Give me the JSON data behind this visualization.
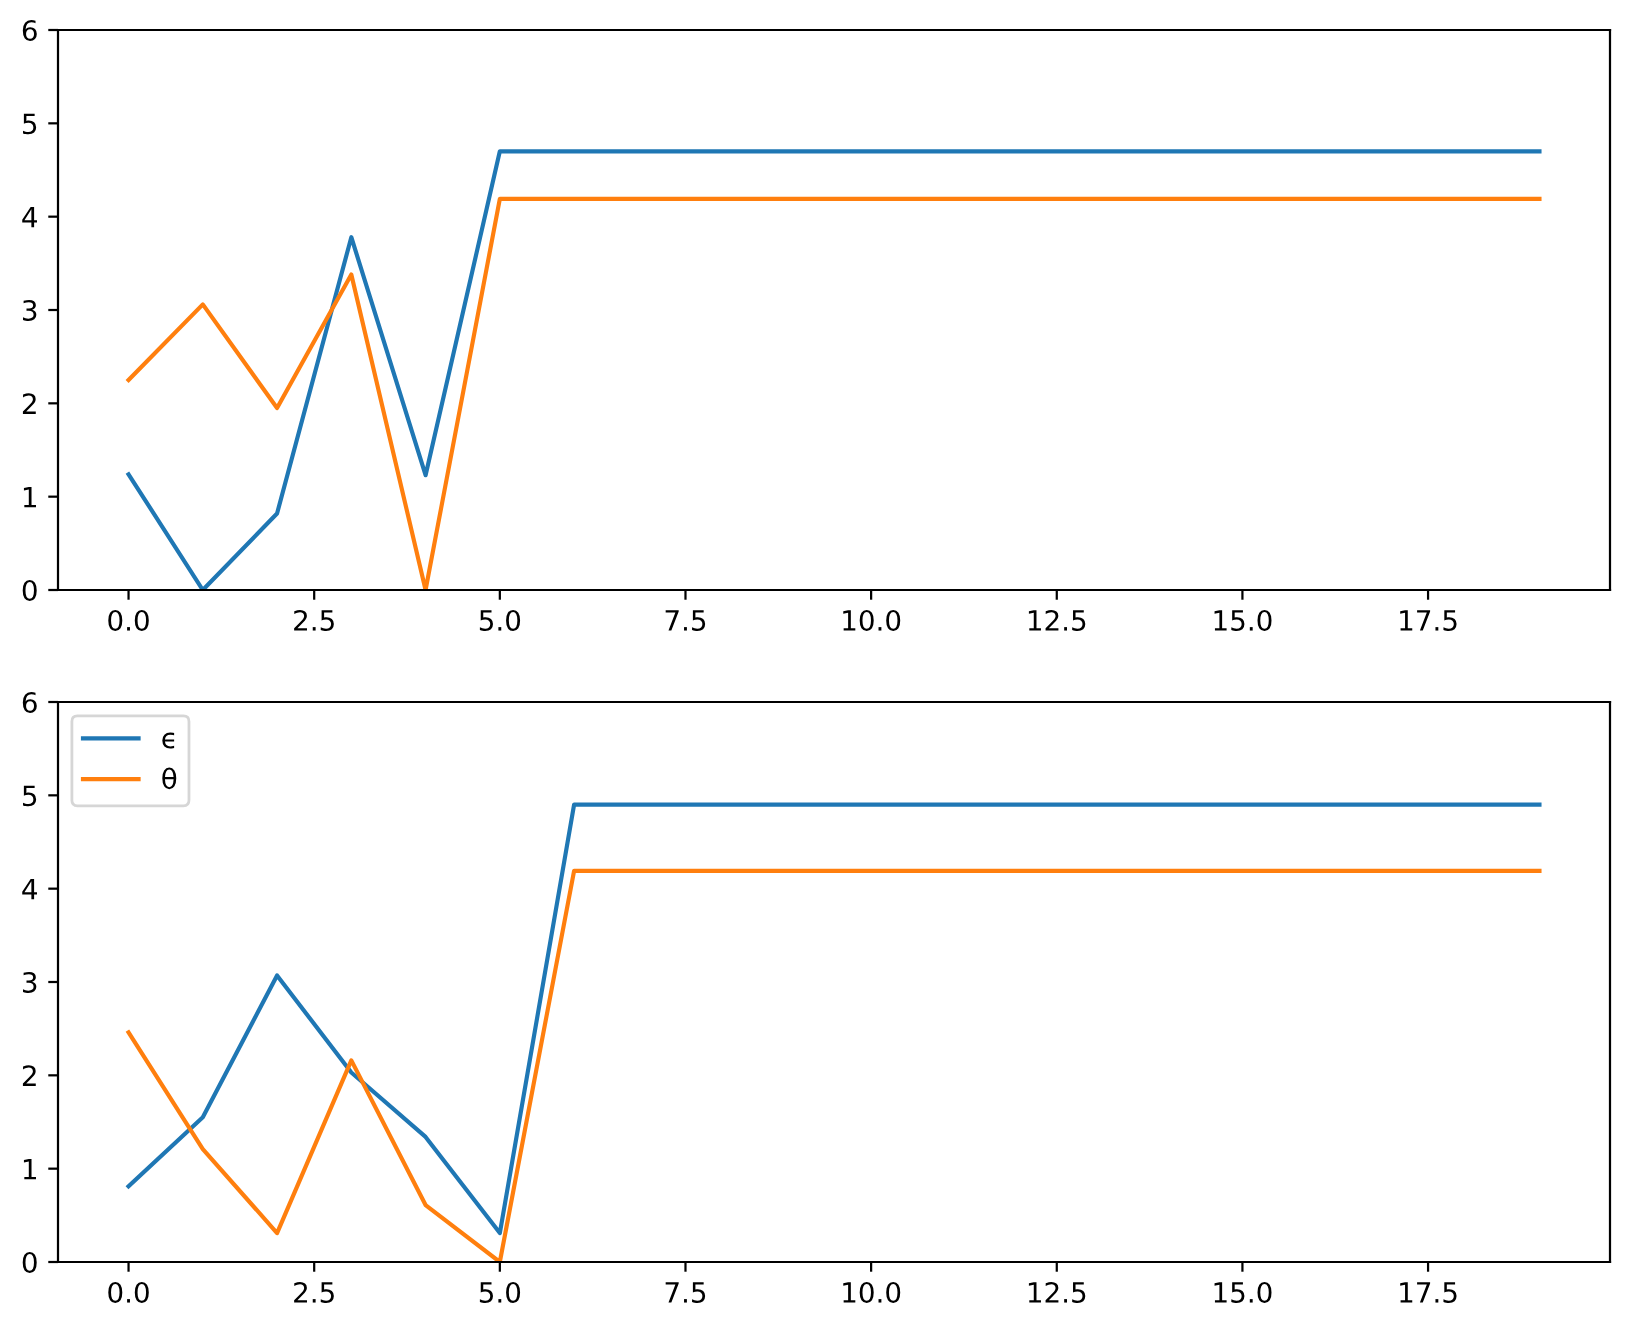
{
  "chart_data": [
    {
      "type": "line",
      "x": [
        0,
        1,
        2,
        3,
        4,
        5,
        6,
        7,
        8,
        9,
        10,
        11,
        12,
        13,
        14,
        15,
        16,
        17,
        18,
        19
      ],
      "series": [
        {
          "color": "#1f77b4",
          "values": [
            1.24,
            0,
            0.82,
            3.78,
            1.23,
            4.7,
            4.7,
            4.7,
            4.7,
            4.7,
            4.7,
            4.7,
            4.7,
            4.7,
            4.7,
            4.7,
            4.7,
            4.7,
            4.7,
            4.7
          ]
        },
        {
          "color": "#ff7f0e",
          "values": [
            2.25,
            3.06,
            1.95,
            3.38,
            0,
            4.19,
            4.19,
            4.19,
            4.19,
            4.19,
            4.19,
            4.19,
            4.19,
            4.19,
            4.19,
            4.19,
            4.19,
            4.19,
            4.19,
            4.19
          ]
        }
      ],
      "xlim": [
        -0.95,
        19.95
      ],
      "ylim": [
        0,
        6
      ],
      "xticks": [
        {
          "value": 0,
          "label": "0.0"
        },
        {
          "value": 2.5,
          "label": "2.5"
        },
        {
          "value": 5,
          "label": "5.0"
        },
        {
          "value": 7.5,
          "label": "7.5"
        },
        {
          "value": 10,
          "label": "10.0"
        },
        {
          "value": 12.5,
          "label": "12.5"
        },
        {
          "value": 15,
          "label": "15.0"
        },
        {
          "value": 17.5,
          "label": "17.5"
        }
      ],
      "yticks": [
        0,
        1,
        2,
        3,
        4,
        5,
        6
      ]
    },
    {
      "type": "line",
      "x": [
        0,
        1,
        2,
        3,
        4,
        5,
        6,
        7,
        8,
        9,
        10,
        11,
        12,
        13,
        14,
        15,
        16,
        17,
        18,
        19
      ],
      "series": [
        {
          "name": "ϵ",
          "color": "#1f77b4",
          "values": [
            0.81,
            1.55,
            3.07,
            2.03,
            1.34,
            0.31,
            4.9,
            4.9,
            4.9,
            4.9,
            4.9,
            4.9,
            4.9,
            4.9,
            4.9,
            4.9,
            4.9,
            4.9,
            4.9,
            4.9
          ]
        },
        {
          "name": "θ",
          "color": "#ff7f0e",
          "values": [
            2.46,
            1.21,
            0.31,
            2.16,
            0.61,
            0,
            4.19,
            4.19,
            4.19,
            4.19,
            4.19,
            4.19,
            4.19,
            4.19,
            4.19,
            4.19,
            4.19,
            4.19,
            4.19,
            4.19
          ]
        }
      ],
      "xlim": [
        -0.95,
        19.95
      ],
      "ylim": [
        0,
        6
      ],
      "xticks": [
        {
          "value": 0,
          "label": "0.0"
        },
        {
          "value": 2.5,
          "label": "2.5"
        },
        {
          "value": 5,
          "label": "5.0"
        },
        {
          "value": 7.5,
          "label": "7.5"
        },
        {
          "value": 10,
          "label": "10.0"
        },
        {
          "value": 12.5,
          "label": "12.5"
        },
        {
          "value": 15,
          "label": "15.0"
        },
        {
          "value": 17.5,
          "label": "17.5"
        }
      ],
      "yticks": [
        0,
        1,
        2,
        3,
        4,
        5,
        6
      ],
      "legend": "top left"
    }
  ]
}
